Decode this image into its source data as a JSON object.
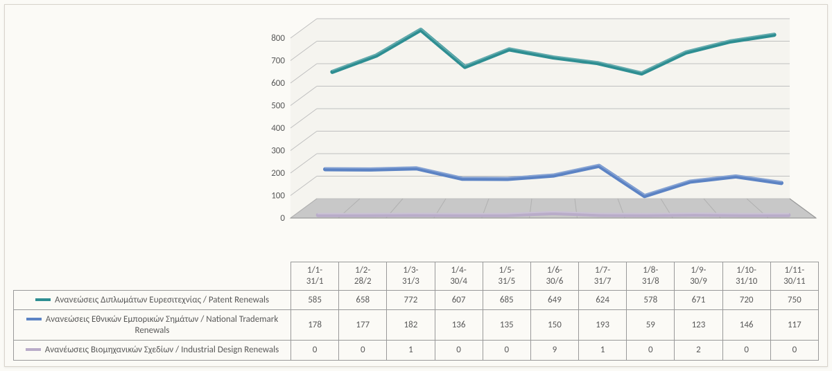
{
  "chart": {
    "type": "line-3d",
    "background_color": "#fbfaf6",
    "floor_color": "#c8c8c8",
    "wall_color": "#f5f4ef",
    "grid_color": "#bfbfbf",
    "tick_text_color": "#595959",
    "ylim": [
      0,
      800
    ],
    "ytick_step": 100,
    "yticks": [
      "0",
      "100",
      "200",
      "300",
      "400",
      "500",
      "600",
      "700",
      "800"
    ],
    "label_fontsize": 13,
    "line_width": 6,
    "categories": [
      "1/1-31/1",
      "1/2-28/2",
      "1/3-31/3",
      "1/4-30/4",
      "1/5-31/5",
      "1/6-30/6",
      "1/7-31/7",
      "1/8-31/8",
      "1/9-30/9",
      "1/10-31/10",
      "1/11-30/11"
    ],
    "series": [
      {
        "name": "Ανανεώσεις Διπλωμάτων Ευρεσιτεχνίας  / Patent Renewals",
        "color": "#2e8e92",
        "values": [
          585,
          658,
          772,
          607,
          685,
          649,
          624,
          578,
          671,
          720,
          750
        ]
      },
      {
        "name": "Ανανεώσεις Εθνικών Εμπορικών Σημάτων / National Trademark Renewals",
        "color": "#5c83c4",
        "values": [
          178,
          177,
          182,
          136,
          135,
          150,
          193,
          59,
          123,
          146,
          117
        ]
      },
      {
        "name": "Ανανέωσεις Βιομηχανικών Σχεδίων / Industrial Design Renewals",
        "color": "#b9acc9",
        "values": [
          0,
          0,
          1,
          0,
          0,
          9,
          1,
          0,
          2,
          0,
          0
        ]
      }
    ]
  }
}
